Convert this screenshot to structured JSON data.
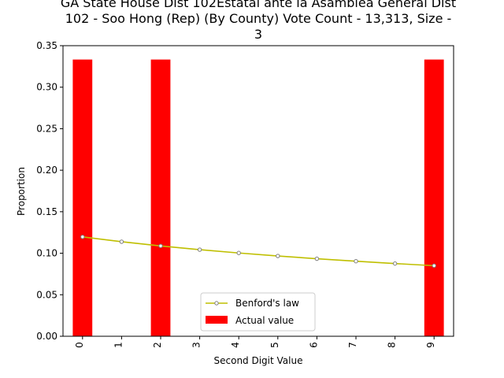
{
  "chart_data": {
    "type": "bar",
    "title_lines": [
      "GA State House Dist 102Estatal ante la Asamblea General Dist",
      "102 - Soo Hong (Rep) (By County) Vote Count - 13,313, Size -",
      "3"
    ],
    "xlabel": "Second Digit Value",
    "ylabel": "Proportion",
    "categories": [
      "0",
      "1",
      "2",
      "3",
      "4",
      "5",
      "6",
      "7",
      "8",
      "9"
    ],
    "ylim": [
      0,
      0.35
    ],
    "yticks": [
      "0.00",
      "0.05",
      "0.10",
      "0.15",
      "0.20",
      "0.25",
      "0.30",
      "0.35"
    ],
    "series": [
      {
        "name": "Actual value",
        "type": "bar",
        "color": "#ff0000",
        "values": [
          0.3333,
          0,
          0.3333,
          0,
          0,
          0,
          0,
          0,
          0,
          0.3333
        ]
      },
      {
        "name": "Benford's law",
        "type": "line",
        "color": "#bfbf00",
        "values": [
          0.1197,
          0.1139,
          0.1088,
          0.1043,
          0.1003,
          0.0967,
          0.0934,
          0.0904,
          0.0876,
          0.085
        ]
      }
    ],
    "legend_position": "lower-center",
    "grid": false
  }
}
